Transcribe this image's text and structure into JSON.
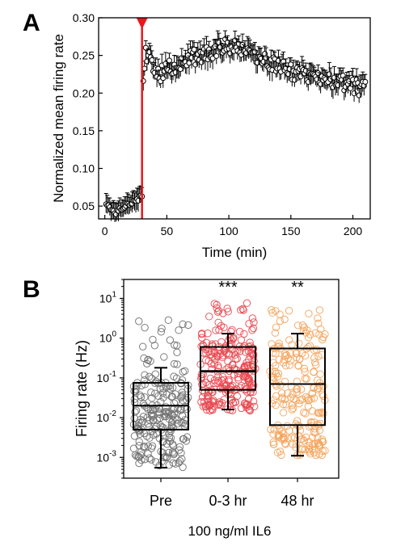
{
  "panels": {
    "a": {
      "letter": "A"
    },
    "b": {
      "letter": "B"
    }
  },
  "chart_data": [
    {
      "type": "scatter",
      "panel": "A",
      "xlabel": "Time (min)",
      "ylabel": "Normalized mean firing rate",
      "xlim": [
        -5,
        214
      ],
      "ylim": [
        0.033,
        0.3
      ],
      "xticks": [
        0,
        50,
        100,
        150,
        200
      ],
      "yticks": [
        0.05,
        0.1,
        0.15,
        0.2,
        0.25,
        0.3
      ],
      "ytick_labels": [
        "0.05",
        "0.10",
        "0.15",
        "0.20",
        "0.25",
        "0.30"
      ],
      "marker": "open-circle",
      "series_color": "#000000",
      "error_bar_half_width": 0.012,
      "event_marker": {
        "x": 30,
        "color": "#e8191c",
        "shape": "down-triangle"
      },
      "anchors_x": [
        1,
        3,
        6,
        9,
        12,
        15,
        18,
        21,
        24,
        27,
        29,
        30,
        31,
        33,
        36,
        40,
        45,
        50,
        55,
        60,
        65,
        70,
        75,
        80,
        85,
        90,
        95,
        100,
        105,
        110,
        115,
        120,
        125,
        130,
        135,
        140,
        145,
        150,
        155,
        160,
        165,
        170,
        175,
        180,
        185,
        190,
        195,
        200,
        205,
        210
      ],
      "anchors_y": [
        0.054,
        0.05,
        0.045,
        0.042,
        0.046,
        0.049,
        0.052,
        0.055,
        0.057,
        0.06,
        0.063,
        0.065,
        0.225,
        0.255,
        0.245,
        0.228,
        0.226,
        0.232,
        0.236,
        0.24,
        0.243,
        0.246,
        0.249,
        0.252,
        0.256,
        0.258,
        0.26,
        0.262,
        0.26,
        0.255,
        0.252,
        0.25,
        0.246,
        0.242,
        0.238,
        0.235,
        0.232,
        0.229,
        0.227,
        0.225,
        0.224,
        0.222,
        0.221,
        0.219,
        0.217,
        0.215,
        0.212,
        0.21,
        0.207,
        0.205
      ]
    },
    {
      "type": "box",
      "panel": "B",
      "categories": [
        "Pre",
        "0-3 hr",
        "48 hr"
      ],
      "xlabel": "100 ng/ml IL6",
      "ylabel": "Firing rate (Hz)",
      "yscale": "log",
      "ylim": [
        0.0003,
        30
      ],
      "yticks": [
        0.001,
        0.01,
        0.1,
        1,
        10
      ],
      "ytick_base": "10",
      "ytick_exponents": [
        "-3",
        "-2",
        "-1",
        "0",
        "1"
      ],
      "significance": [
        "",
        "***",
        "**"
      ],
      "colors": [
        "#6e6e6e",
        "#e8474f",
        "#f4a45c"
      ],
      "boxes": [
        {
          "whisker_low": 0.00055,
          "q1": 0.005,
          "median": 0.02,
          "mean": 0.02,
          "q3": 0.075,
          "whisker_high": 0.18
        },
        {
          "whisker_low": 0.016,
          "q1": 0.05,
          "median": 0.15,
          "mean": 0.14,
          "q3": 0.6,
          "whisker_high": 1.3
        },
        {
          "whisker_low": 0.0011,
          "q1": 0.0065,
          "median": 0.07,
          "mean": 0.07,
          "q3": 0.55,
          "whisker_high": 1.3
        }
      ],
      "point_ranges": [
        {
          "min": 0.00055,
          "max": 3.7,
          "count": 230
        },
        {
          "min": 0.015,
          "max": 8.5,
          "count": 260
        },
        {
          "min": 0.0011,
          "max": 12,
          "count": 230
        }
      ]
    }
  ]
}
